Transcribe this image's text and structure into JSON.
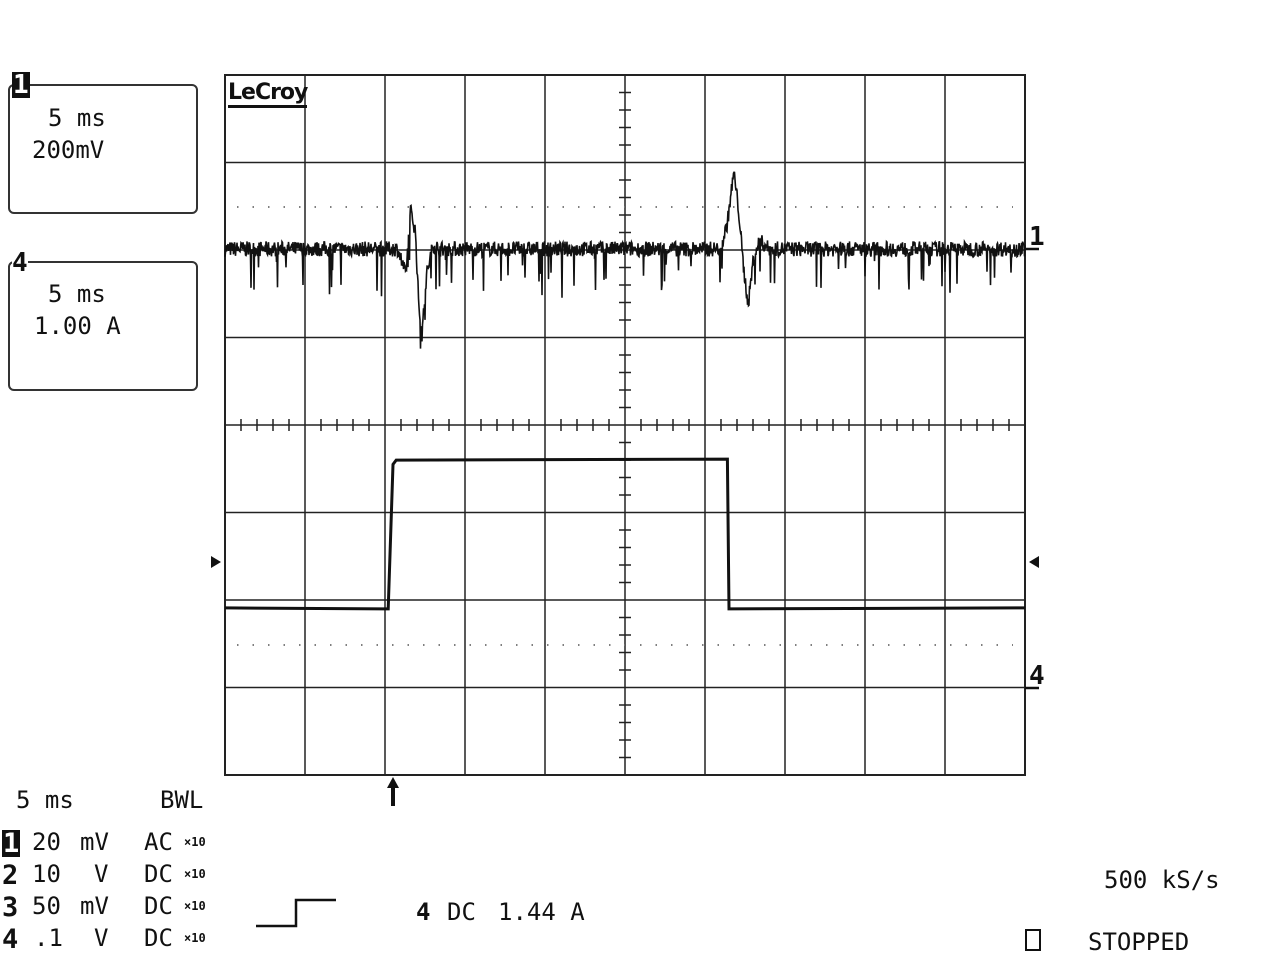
{
  "brand": "LeCroy",
  "trace_boxes": [
    {
      "channel": "1",
      "timebase": "5 ms",
      "scale": "200mV"
    },
    {
      "channel": "4",
      "timebase": "5 ms",
      "scale": "1.00 A"
    }
  ],
  "footer": {
    "timebase": "5 ms",
    "bwl": "BWL",
    "channels": [
      {
        "num": "1",
        "scale": "20",
        "unit": "mV",
        "coupling": "AC",
        "probe": "×10"
      },
      {
        "num": "2",
        "scale": "10",
        "unit": "V",
        "coupling": "DC",
        "probe": "×10"
      },
      {
        "num": "3",
        "scale": "50",
        "unit": "mV",
        "coupling": "DC",
        "probe": "×10"
      },
      {
        "num": "4",
        "scale": ".1",
        "unit": "V",
        "coupling": "DC",
        "probe": "×10"
      }
    ],
    "trigger": {
      "source": "4",
      "coupling": "DC",
      "level": "1.44 A",
      "slope": "rising"
    },
    "sample_rate": "500 kS/s",
    "status": "STOPPED"
  },
  "chart_data": {
    "type": "line",
    "grid": true,
    "divisions": {
      "x": 10,
      "y": 8
    },
    "x_unit": "ms",
    "xlim": [
      0,
      50
    ],
    "trigger_time_ms": 10.5,
    "series": [
      {
        "name": "1",
        "unit": "mV",
        "per_div": 200,
        "noise_band_mV": 35,
        "color": "#111111",
        "points": [
          [
            0,
            0
          ],
          [
            10.8,
            0
          ],
          [
            11.3,
            -60
          ],
          [
            11.6,
            89
          ],
          [
            11.9,
            40
          ],
          [
            12.1,
            -120
          ],
          [
            12.3,
            -201
          ],
          [
            12.6,
            -60
          ],
          [
            13.0,
            10
          ],
          [
            13.4,
            0
          ],
          [
            31.0,
            0
          ],
          [
            31.4,
            60
          ],
          [
            31.8,
            176
          ],
          [
            32.1,
            90
          ],
          [
            32.4,
            -40
          ],
          [
            32.7,
            -128
          ],
          [
            33.0,
            -30
          ],
          [
            33.4,
            20
          ],
          [
            34.0,
            0
          ],
          [
            50,
            0
          ]
        ]
      },
      {
        "name": "4",
        "unit": "A",
        "per_div": 1.0,
        "noise_band_mV": 0,
        "color": "#111111",
        "points": [
          [
            0,
            0.91
          ],
          [
            10.2,
            0.91
          ],
          [
            10.5,
            2.55
          ],
          [
            10.7,
            2.61
          ],
          [
            31.4,
            2.61
          ],
          [
            31.5,
            0.91
          ],
          [
            50,
            0.91
          ]
        ]
      }
    ]
  }
}
